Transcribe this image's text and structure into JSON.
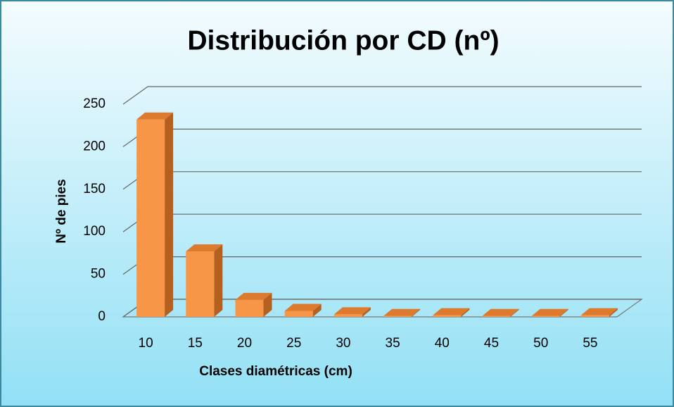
{
  "chart_data": {
    "type": "bar3d",
    "title": "Distribución por CD (nº)",
    "x_label": "Clases diamétricas (cm)",
    "y_label": "Nº de pies",
    "categories": [
      "10",
      "15",
      "20",
      "25",
      "30",
      "35",
      "40",
      "45",
      "50",
      "55"
    ],
    "values": [
      232,
      77,
      20,
      7,
      3,
      1,
      2,
      1,
      1,
      2
    ],
    "color": "#f79646",
    "ylim": [
      0,
      250
    ],
    "yticks": [
      0,
      50,
      100,
      150,
      200,
      250
    ],
    "grid": true
  }
}
